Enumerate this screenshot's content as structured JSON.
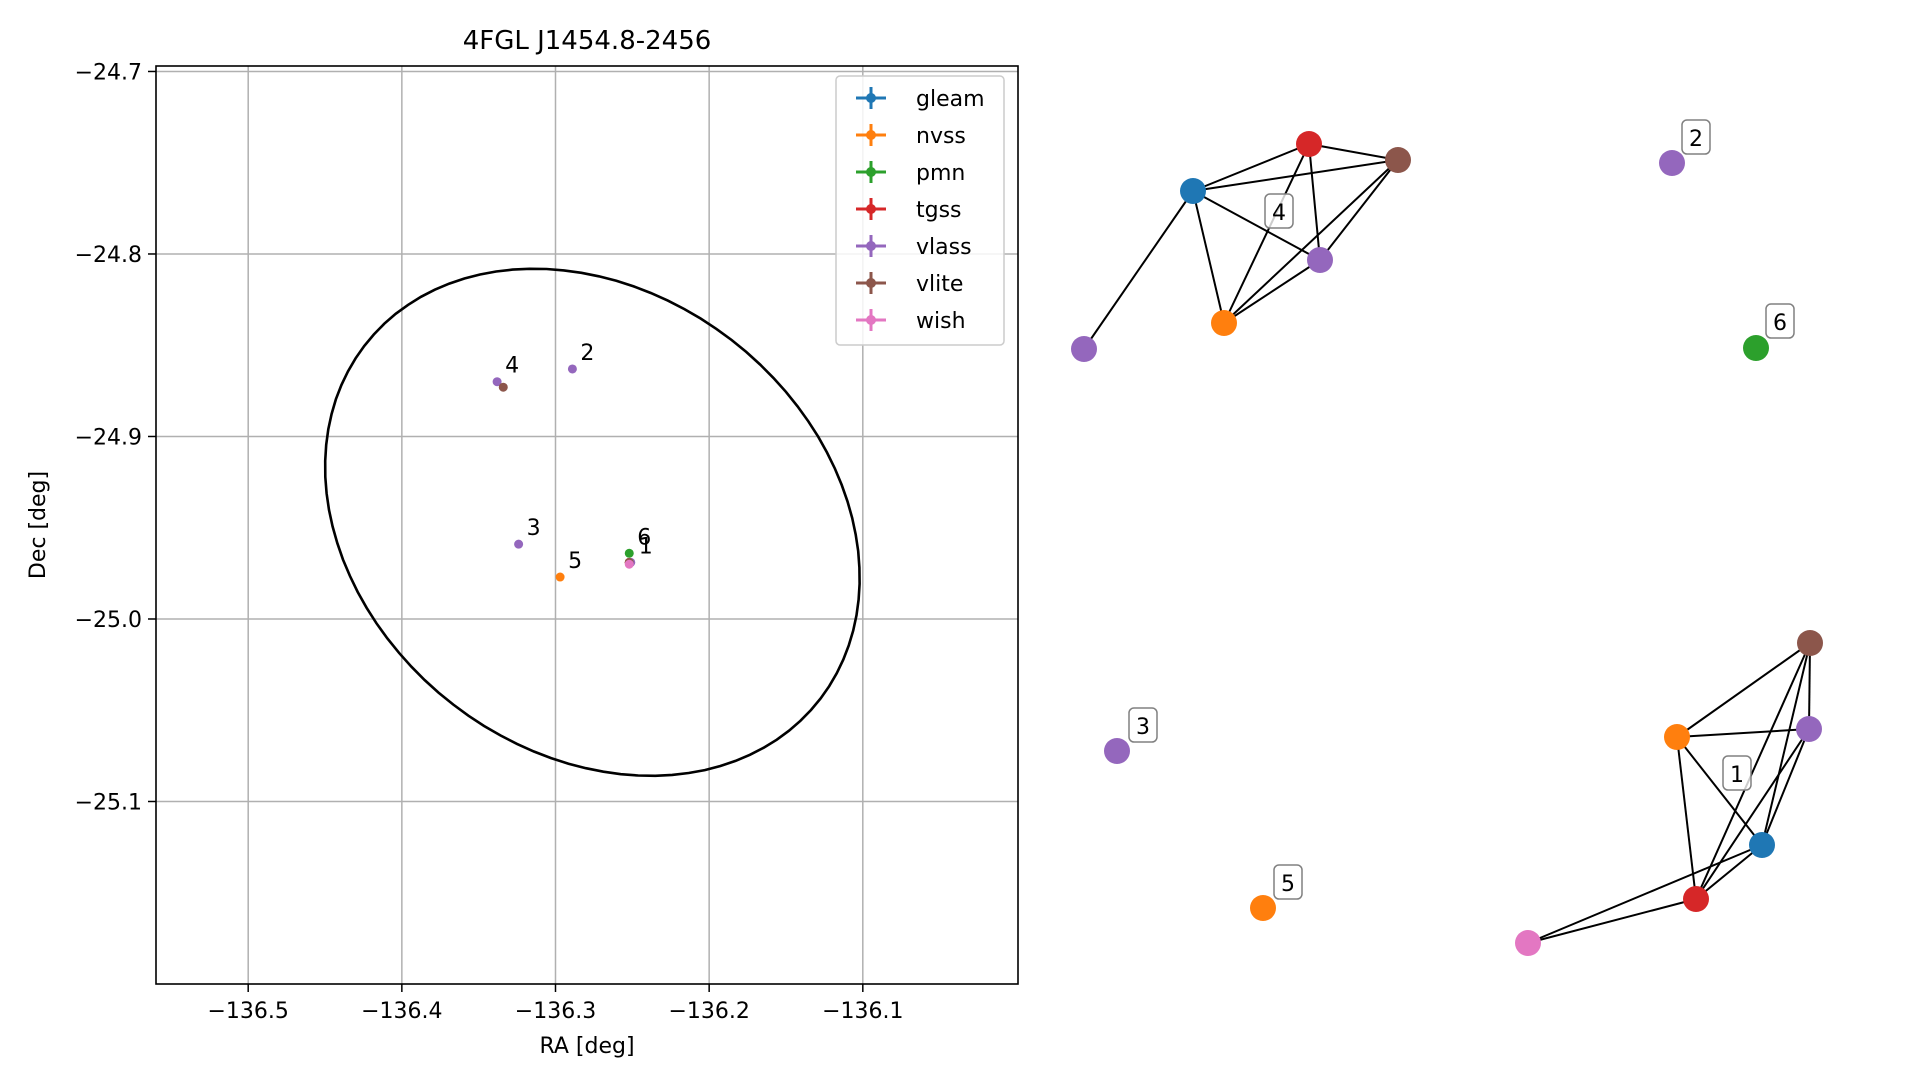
{
  "chart_data": [
    {
      "type": "scatter",
      "title": "4FGL J1454.8-2456",
      "xlabel": "RA [deg]",
      "ylabel": "Dec [deg]",
      "xlim": [
        -136.56,
        -135.999
      ],
      "ylim": [
        -25.2,
        -24.697
      ],
      "xticks": [
        -136.5,
        -136.4,
        -136.3,
        -136.2,
        -136.1
      ],
      "xtick_labels": [
        "−136.5",
        "−136.4",
        "−136.3",
        "−136.2",
        "−136.1"
      ],
      "yticks": [
        -24.7,
        -24.8,
        -24.9,
        -25.0,
        -25.1
      ],
      "ytick_labels": [
        "−24.7",
        "−24.8",
        "−24.9",
        "−25.0",
        "−25.1"
      ],
      "grid": true,
      "legend_position": "top-right",
      "series": [
        {
          "name": "gleam",
          "color": "#1f77b4",
          "points": [
            [
              -136.252,
              -24.969
            ]
          ]
        },
        {
          "name": "nvss",
          "color": "#ff7f0e",
          "points": [
            [
              -136.252,
              -24.969
            ],
            [
              -136.297,
              -24.977
            ]
          ]
        },
        {
          "name": "pmn",
          "color": "#2ca02c",
          "points": [
            [
              -136.252,
              -24.964
            ]
          ]
        },
        {
          "name": "tgss",
          "color": "#d62728",
          "points": [
            [
              -136.252,
              -24.969
            ]
          ]
        },
        {
          "name": "vlass",
          "color": "#9467bd",
          "points": [
            [
              -136.251,
              -24.969
            ],
            [
              -136.289,
              -24.863
            ],
            [
              -136.324,
              -24.959
            ],
            [
              -136.338,
              -24.87
            ]
          ]
        },
        {
          "name": "vlite",
          "color": "#8c564b",
          "points": [
            [
              -136.252,
              -24.969
            ],
            [
              -136.334,
              -24.873
            ]
          ]
        },
        {
          "name": "wish",
          "color": "#e377c2",
          "points": [
            [
              -136.252,
              -24.97
            ]
          ]
        }
      ],
      "source_labels": [
        {
          "label": "1",
          "x": -136.251,
          "y": -24.969
        },
        {
          "label": "2",
          "x": -136.289,
          "y": -24.863
        },
        {
          "label": "3",
          "x": -136.324,
          "y": -24.959
        },
        {
          "label": "4",
          "x": -136.338,
          "y": -24.87
        },
        {
          "label": "5",
          "x": -136.297,
          "y": -24.977
        },
        {
          "label": "6",
          "x": -136.252,
          "y": -24.964
        }
      ],
      "error_ellipse": {
        "center": [
          -136.276,
          -24.947
        ],
        "semi_axes": [
          0.18,
          0.131
        ],
        "angle_deg": -22
      }
    },
    {
      "type": "network",
      "groups": [
        {
          "label": "4",
          "nodes": [
            {
              "id": "g4-gleam",
              "color": "#1f77b4"
            },
            {
              "id": "g4-tgss",
              "color": "#d62728"
            },
            {
              "id": "g4-vlite",
              "color": "#8c564b"
            },
            {
              "id": "g4-vlass-a",
              "color": "#9467bd"
            },
            {
              "id": "g4-nvss",
              "color": "#ff7f0e"
            },
            {
              "id": "g4-vlass-b",
              "color": "#9467bd"
            }
          ],
          "edges": [
            [
              "g4-gleam",
              "g4-tgss"
            ],
            [
              "g4-gleam",
              "g4-vlite"
            ],
            [
              "g4-gleam",
              "g4-vlass-a"
            ],
            [
              "g4-gleam",
              "g4-nvss"
            ],
            [
              "g4-gleam",
              "g4-vlass-b"
            ],
            [
              "g4-tgss",
              "g4-vlite"
            ],
            [
              "g4-tgss",
              "g4-vlass-a"
            ],
            [
              "g4-tgss",
              "g4-nvss"
            ],
            [
              "g4-vlite",
              "g4-nvss"
            ],
            [
              "g4-vlite",
              "g4-vlass-a"
            ],
            [
              "g4-vlass-a",
              "g4-nvss"
            ]
          ]
        },
        {
          "label": "2",
          "nodes": [
            {
              "id": "g2-vlass",
              "color": "#9467bd"
            }
          ],
          "edges": []
        },
        {
          "label": "6",
          "nodes": [
            {
              "id": "g6-pmn",
              "color": "#2ca02c"
            }
          ],
          "edges": []
        },
        {
          "label": "3",
          "nodes": [
            {
              "id": "g3-vlass",
              "color": "#9467bd"
            }
          ],
          "edges": []
        },
        {
          "label": "5",
          "nodes": [
            {
              "id": "g5-nvss",
              "color": "#ff7f0e"
            }
          ],
          "edges": []
        },
        {
          "label": "1",
          "nodes": [
            {
              "id": "g1-vlite",
              "color": "#8c564b"
            },
            {
              "id": "g1-nvss",
              "color": "#ff7f0e"
            },
            {
              "id": "g1-vlass",
              "color": "#9467bd"
            },
            {
              "id": "g1-gleam",
              "color": "#1f77b4"
            },
            {
              "id": "g1-tgss",
              "color": "#d62728"
            },
            {
              "id": "g1-wish",
              "color": "#e377c2"
            }
          ],
          "edges": [
            [
              "g1-vlite",
              "g1-nvss"
            ],
            [
              "g1-vlite",
              "g1-vlass"
            ],
            [
              "g1-vlite",
              "g1-gleam"
            ],
            [
              "g1-vlite",
              "g1-tgss"
            ],
            [
              "g1-nvss",
              "g1-vlass"
            ],
            [
              "g1-nvss",
              "g1-gleam"
            ],
            [
              "g1-nvss",
              "g1-tgss"
            ],
            [
              "g1-vlass",
              "g1-gleam"
            ],
            [
              "g1-vlass",
              "g1-tgss"
            ],
            [
              "g1-gleam",
              "g1-tgss"
            ],
            [
              "g1-gleam",
              "g1-wish"
            ],
            [
              "g1-tgss",
              "g1-wish"
            ]
          ]
        }
      ]
    }
  ]
}
